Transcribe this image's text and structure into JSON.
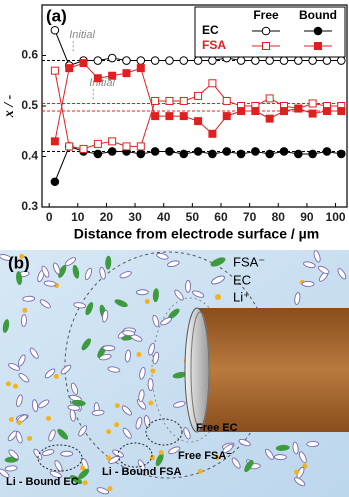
{
  "chart_data": {
    "type": "line",
    "panel_label": "(a)",
    "x_label": "Distance from electrode surface / µm",
    "y_label": "x / -",
    "x": [
      2,
      7,
      12,
      17,
      22,
      27,
      32,
      37,
      42,
      47,
      52,
      57,
      62,
      67,
      72,
      77,
      82,
      87,
      92,
      97,
      102
    ],
    "legend_columns": [
      "Free",
      "Bound"
    ],
    "series": [
      {
        "name": "EC",
        "color": "#000000",
        "marker": "circle",
        "free": [
          0.65,
          0.58,
          0.59,
          0.59,
          0.595,
          0.59,
          0.59,
          0.59,
          0.59,
          0.59,
          0.59,
          0.59,
          0.595,
          0.59,
          0.59,
          0.59,
          0.59,
          0.59,
          0.59,
          0.59,
          0.59
        ],
        "bound": [
          0.35,
          0.42,
          0.41,
          0.405,
          0.41,
          0.41,
          0.405,
          0.41,
          0.41,
          0.405,
          0.41,
          0.405,
          0.41,
          0.405,
          0.41,
          0.405,
          0.41,
          0.405,
          0.405,
          0.41,
          0.405
        ]
      },
      {
        "name": "FSA",
        "color": "#e02020",
        "marker": "square",
        "free": [
          0.57,
          0.42,
          0.415,
          0.425,
          0.43,
          0.42,
          0.42,
          0.51,
          0.51,
          0.51,
          0.52,
          0.545,
          0.51,
          0.5,
          0.5,
          0.515,
          0.5,
          0.495,
          0.505,
          0.5,
          0.5
        ],
        "bound": [
          0.43,
          0.575,
          0.585,
          0.555,
          0.56,
          0.565,
          0.575,
          0.48,
          0.48,
          0.48,
          0.47,
          0.445,
          0.48,
          0.49,
          0.49,
          0.475,
          0.49,
          0.495,
          0.485,
          0.49,
          0.49
        ]
      }
    ],
    "reference_lines": [
      {
        "value": 0.59,
        "color": "#000000"
      },
      {
        "value": 0.41,
        "color": "#000000"
      },
      {
        "value": 0.505,
        "color": "#e02020"
      },
      {
        "value": 0.49,
        "color": "#e02020"
      }
    ],
    "annotations": [
      {
        "text": "Initial",
        "x": 7,
        "y": 0.64
      },
      {
        "text": "Initial",
        "x": 14,
        "y": 0.545
      }
    ],
    "xlim": [
      -2.5,
      104
    ],
    "ylim": [
      0.3,
      0.7
    ],
    "xticks": [
      0,
      10,
      20,
      30,
      40,
      50,
      60,
      70,
      80,
      90,
      100
    ],
    "yticks": [
      0.3,
      0.4,
      0.5,
      0.6
    ]
  },
  "diagram": {
    "panel_label": "(b)",
    "legend": [
      "FSA⁻",
      "EC",
      "Li⁺"
    ],
    "labels": [
      "Free EC",
      "Free FSA⁻",
      "Li - Bound FSA",
      "Li - Bound EC"
    ]
  }
}
